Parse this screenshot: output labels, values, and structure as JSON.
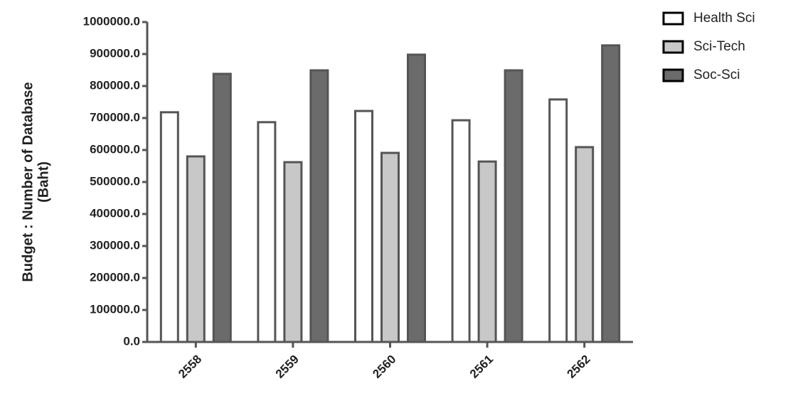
{
  "chart_data": {
    "type": "bar",
    "ylabel": [
      "Budget : Number of  Database",
      "(Baht)"
    ],
    "categories": [
      "2558",
      "2559",
      "2560",
      "2561",
      "2562"
    ],
    "series": [
      {
        "name": "Health Sci",
        "color": "#ffffff",
        "values": [
          718000,
          687000,
          722000,
          693000,
          758000
        ]
      },
      {
        "name": "Sci-Tech",
        "color": "#c8c8c8",
        "values": [
          580000,
          562000,
          591000,
          564000,
          609000
        ]
      },
      {
        "name": "Soc-Sci",
        "color": "#6b6b6b",
        "values": [
          838000,
          849000,
          898000,
          849000,
          927000
        ]
      }
    ],
    "ylim": [
      0,
      1000000
    ],
    "yticks": [
      {
        "value": 0,
        "label": "0.0"
      },
      {
        "value": 100000,
        "label": "100000.0"
      },
      {
        "value": 200000,
        "label": "200000.0"
      },
      {
        "value": 300000,
        "label": "300000.0"
      },
      {
        "value": 400000,
        "label": "400000.0"
      },
      {
        "value": 500000,
        "label": "500000.0"
      },
      {
        "value": 600000,
        "label": "600000.0"
      },
      {
        "value": 700000,
        "label": "700000.0"
      },
      {
        "value": 800000,
        "label": "800000.0"
      },
      {
        "value": 900000,
        "label": "900000.0"
      },
      {
        "value": 1000000,
        "label": "1000000.0"
      }
    ],
    "legend": "top-right"
  }
}
